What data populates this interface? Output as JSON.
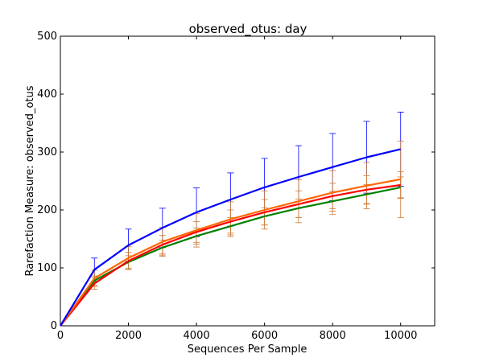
{
  "chart_data": {
    "type": "line",
    "title": "observed_otus: day",
    "xlabel": "Sequences Per Sample",
    "ylabel": "Rarefaction Measure: observed_otus",
    "xlim": [
      0,
      11000
    ],
    "ylim": [
      0,
      500
    ],
    "xticks": [
      "0",
      "2000",
      "4000",
      "6000",
      "8000",
      "10000"
    ],
    "yticks": [
      "0",
      "100",
      "200",
      "300",
      "400",
      "500"
    ],
    "grid": false,
    "legend": "none",
    "x": [
      0,
      1000,
      2000,
      3000,
      4000,
      5000,
      6000,
      7000,
      8000,
      9000,
      10000
    ],
    "series": [
      {
        "color": "#0000ff",
        "values": [
          0,
          97,
          139,
          169,
          196,
          218,
          239,
          257,
          274,
          291,
          305
        ],
        "err": [
          0,
          20,
          28,
          34,
          42,
          46,
          50,
          54,
          58,
          62,
          64
        ]
      },
      {
        "color": "#ff6600",
        "values": [
          0,
          82,
          117,
          145,
          165,
          184,
          200,
          215,
          230,
          242,
          253
        ],
        "err": [
          0,
          14,
          20,
          25,
          29,
          30,
          33,
          37,
          38,
          40,
          66
        ]
      },
      {
        "color": "#ff0000",
        "values": [
          0,
          73,
          112,
          140,
          162,
          180,
          196,
          210,
          224,
          235,
          243
        ],
        "err": [
          0,
          10,
          15,
          16,
          18,
          20,
          22,
          23,
          22,
          24,
          23
        ]
      },
      {
        "color": "#008000",
        "values": [
          0,
          78,
          110,
          135,
          155,
          172,
          189,
          203,
          215,
          227,
          239
        ],
        "err": [
          0,
          8,
          11,
          13,
          14,
          15,
          15,
          16,
          17,
          17,
          18
        ]
      }
    ],
    "errorbar_colors": [
      "#0000ff",
      "#cc7a33"
    ]
  }
}
